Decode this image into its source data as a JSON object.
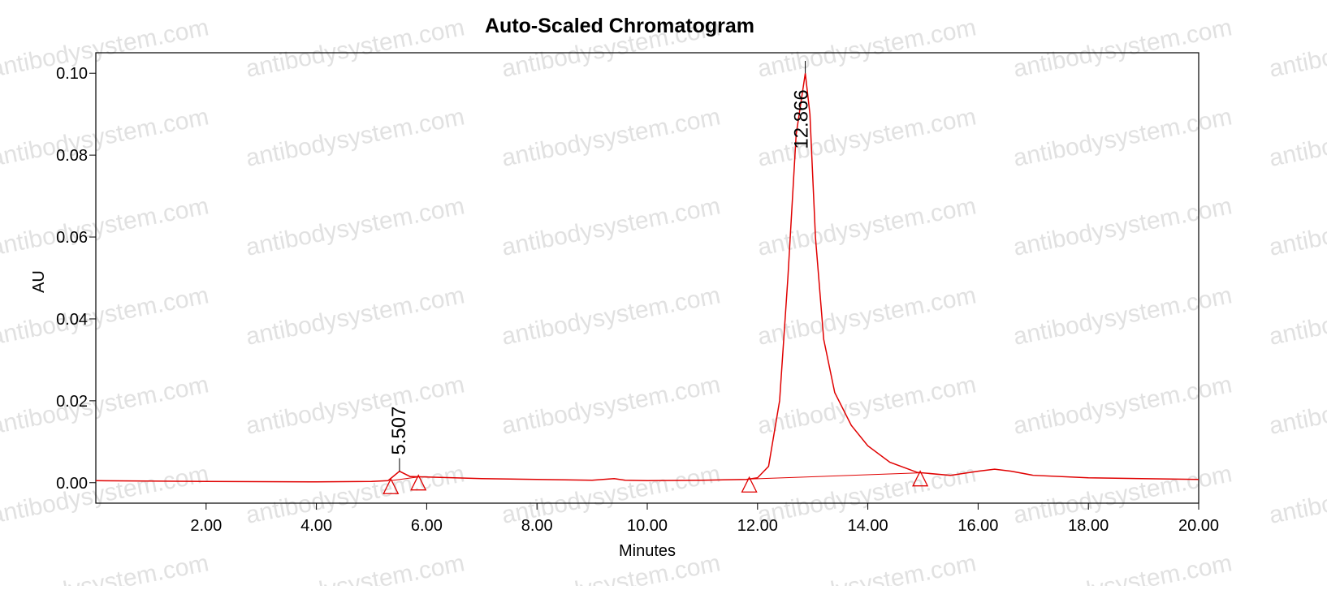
{
  "chart_data": {
    "type": "line",
    "title": "Auto-Scaled Chromatogram",
    "x_label": "Minutes",
    "y_label": "AU",
    "watermark": "antibodysystem.com",
    "color": "#e00000",
    "x": [
      0,
      2,
      4,
      5.0,
      5.3,
      5.507,
      5.7,
      6.0,
      7.0,
      8.0,
      9.0,
      9.4,
      9.6,
      10,
      11,
      11.8,
      12.0,
      12.2,
      12.4,
      12.55,
      12.7,
      12.866,
      12.95,
      13.05,
      13.2,
      13.4,
      13.7,
      14.0,
      14.4,
      14.9,
      15.5,
      16.0,
      16.3,
      16.6,
      17.0,
      18,
      20
    ],
    "series": [
      {
        "values": [
          0.0005,
          0.0003,
          0.0002,
          0.0003,
          0.0005,
          0.0028,
          0.0015,
          0.0014,
          0.001,
          0.0008,
          0.0006,
          0.001,
          0.0006,
          0.0005,
          0.0006,
          0.0008,
          0.0012,
          0.004,
          0.02,
          0.05,
          0.085,
          0.1,
          0.09,
          0.06,
          0.035,
          0.022,
          0.014,
          0.009,
          0.005,
          0.0025,
          0.0018,
          0.0028,
          0.0033,
          0.0028,
          0.0018,
          0.0012,
          0.0008
        ]
      }
    ],
    "peaks": [
      {
        "x": 5.507,
        "y": 0.0028
      },
      {
        "x": 12.866,
        "y": 0.1
      }
    ],
    "baselines": [
      {
        "x": [
          5.35,
          5.85
        ],
        "y": [
          0.0005,
          0.0014
        ]
      },
      {
        "x": [
          11.85,
          14.95
        ],
        "y": [
          0.0009,
          0.0024
        ]
      }
    ],
    "xlim": [
      0,
      20
    ],
    "ylim": [
      -0.005,
      0.105
    ],
    "xticks": [
      {
        "value": 2,
        "label": "2.00"
      },
      {
        "value": 4,
        "label": "4.00"
      },
      {
        "value": 6,
        "label": "6.00"
      },
      {
        "value": 8,
        "label": "8.00"
      },
      {
        "value": 10,
        "label": "10.00"
      },
      {
        "value": 12,
        "label": "12.00"
      },
      {
        "value": 14,
        "label": "14.00"
      },
      {
        "value": 16,
        "label": "16.00"
      },
      {
        "value": 18,
        "label": "18.00"
      },
      {
        "value": 20,
        "label": "20.00"
      }
    ],
    "yticks": [
      {
        "value": 0,
        "label": "0.00"
      },
      {
        "value": 0.02,
        "label": "0.02"
      },
      {
        "value": 0.04,
        "label": "0.04"
      },
      {
        "value": 0.06,
        "label": "0.06"
      },
      {
        "value": 0.08,
        "label": "0.08"
      },
      {
        "value": 0.1,
        "label": "0.10"
      }
    ]
  }
}
